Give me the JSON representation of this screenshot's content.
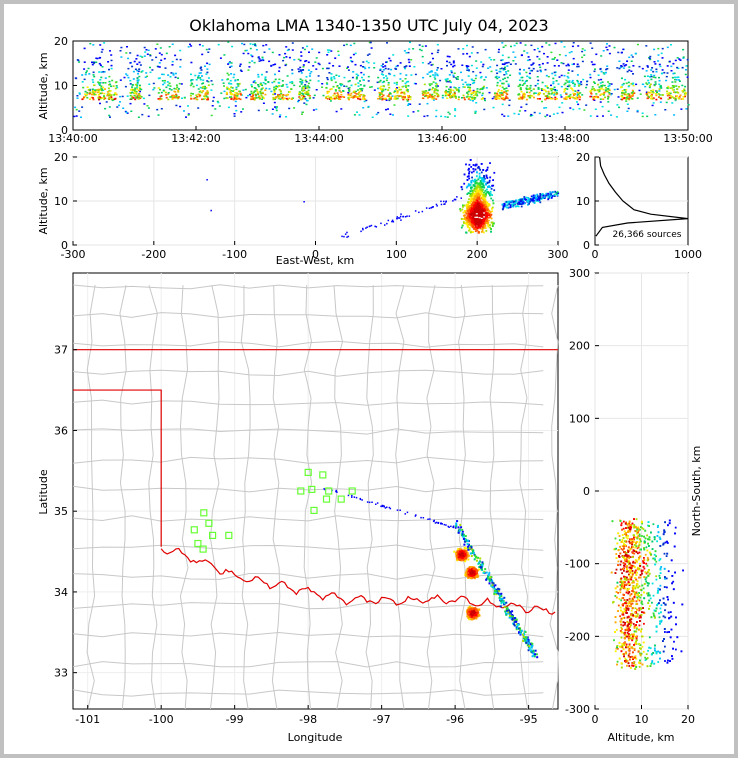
{
  "title": "Oklahoma LMA 1340-1350 UTC July 04, 2023",
  "colors": {
    "boundary": "#e00000",
    "county": "#c8c8c8",
    "station": "#66ff33",
    "frame": "#c0c0c0"
  },
  "chart_data": [
    {
      "type": "heatmap",
      "panel": "altitude-time",
      "ylabel": "Altitude, km",
      "ylim": [
        0,
        20
      ],
      "yticks": [
        "0",
        "10",
        "20"
      ],
      "xticks": [
        "13:40:00",
        "13:42:00",
        "13:44:00",
        "13:46:00",
        "13:48:00",
        "13:50:00"
      ],
      "x_minutes": [
        0,
        10
      ],
      "burst_minutes": [
        0.3,
        0.55,
        1.0,
        1.55,
        2.05,
        2.6,
        3.0,
        3.4,
        3.75,
        4.25,
        4.6,
        5.05,
        5.35,
        5.8,
        6.15,
        6.5,
        6.95,
        7.35,
        7.7,
        8.1,
        8.55,
        9.0,
        9.45,
        9.8
      ]
    },
    {
      "type": "heatmap",
      "panel": "altitude-east-west",
      "xlabel": "East-West, km",
      "ylabel": "Altitude, km",
      "xlim": [
        -300,
        300
      ],
      "ylim": [
        0,
        20
      ],
      "xticks": [
        "-300",
        "-200",
        "-100",
        "0",
        "100",
        "200",
        "300"
      ],
      "yticks": [
        "0",
        "10",
        "20"
      ],
      "core_ew_km": 200,
      "core_alt_km": 7
    },
    {
      "type": "line",
      "panel": "altitude-histogram",
      "xlim": [
        0,
        1000
      ],
      "ylim": [
        0,
        20
      ],
      "xticks": [
        "0",
        "1000"
      ],
      "yticks": [
        "0",
        "10",
        "20"
      ],
      "annotation": "26,366 sources",
      "profile": [
        [
          2,
          10
        ],
        [
          4,
          80
        ],
        [
          5,
          350
        ],
        [
          6,
          1000
        ],
        [
          7,
          600
        ],
        [
          8,
          420
        ],
        [
          9,
          360
        ],
        [
          10,
          300
        ],
        [
          12,
          220
        ],
        [
          14,
          150
        ],
        [
          16,
          100
        ],
        [
          18,
          60
        ],
        [
          20,
          50
        ]
      ]
    },
    {
      "type": "scatter",
      "panel": "plan-view-map",
      "xlabel": "Longitude",
      "ylabel": "Latitude",
      "xlim": [
        -101.2,
        -94.6
      ],
      "ylim": [
        32.55,
        37.95
      ],
      "xticks": [
        "-101",
        "-100",
        "-99",
        "-98",
        "-97",
        "-96",
        "-95"
      ],
      "yticks": [
        "33",
        "34",
        "35",
        "36",
        "37"
      ],
      "stations": [
        [
          -99.42,
          34.98
        ],
        [
          -99.35,
          34.85
        ],
        [
          -99.55,
          34.77
        ],
        [
          -99.3,
          34.7
        ],
        [
          -99.5,
          34.6
        ],
        [
          -99.43,
          34.53
        ],
        [
          -99.08,
          34.7
        ],
        [
          -98.0,
          35.48
        ],
        [
          -97.8,
          35.45
        ],
        [
          -98.1,
          35.25
        ],
        [
          -97.95,
          35.27
        ],
        [
          -97.72,
          35.25
        ],
        [
          -97.4,
          35.25
        ],
        [
          -97.55,
          35.15
        ],
        [
          -97.75,
          35.15
        ],
        [
          -97.92,
          35.01
        ]
      ],
      "cells": [
        [
          -95.92,
          34.47
        ],
        [
          -95.78,
          34.25
        ],
        [
          -95.77,
          33.75
        ]
      ]
    },
    {
      "type": "heatmap",
      "panel": "north-south-altitude",
      "xlabel": "Altitude, km",
      "ylabel": "North-South, km",
      "xlim": [
        0,
        20
      ],
      "ylim": [
        -300,
        300
      ],
      "xticks": [
        "0",
        "10",
        "20"
      ],
      "yticks": [
        "300",
        "200",
        "100",
        "0",
        "-100",
        "-200",
        "-300"
      ]
    }
  ]
}
